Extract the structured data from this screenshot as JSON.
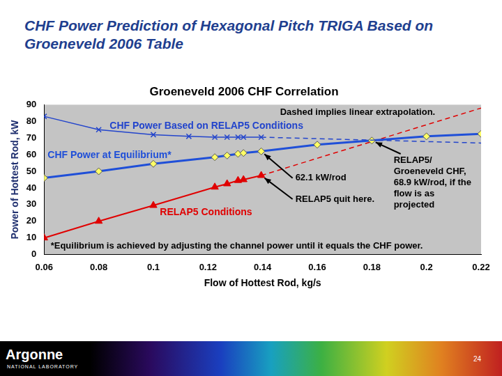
{
  "slide_title": "CHF Power Prediction of Hexagonal Pitch TRIGA Based on Groeneveld 2006 Table",
  "footer": {
    "logo": "Argonne",
    "logo_subtitle": "NATIONAL LABORATORY",
    "page": "24"
  },
  "chart_data": {
    "type": "line",
    "title": "Groeneveld 2006 CHF Correlation",
    "x_label": "Flow of Hottest Rod, kg/s",
    "y_label": "Power of Hottest Rod, kW",
    "xlim": [
      0.06,
      0.22
    ],
    "xticks": [
      0.06,
      0.08,
      0.1,
      0.12,
      0.14,
      0.16,
      0.18,
      0.2,
      0.22
    ],
    "ylim": [
      0,
      90
    ],
    "yticks": [
      0,
      10,
      20,
      30,
      40,
      50,
      60,
      70,
      80,
      90
    ],
    "grid": false,
    "series": [
      {
        "name": "CHF Power Based on RELAP5 Conditions",
        "color": "#2244cc",
        "marker": "x",
        "line_style": "solid",
        "x": [
          0.06,
          0.08,
          0.1,
          0.113,
          0.1225,
          0.127,
          0.131,
          0.133,
          0.1395
        ],
        "values": [
          83,
          75,
          72,
          71,
          70.5,
          70.5,
          70.5,
          70.5,
          70.5
        ]
      },
      {
        "color": "#2244cc",
        "marker": "none",
        "line_style": "dashed",
        "x": [
          0.1395,
          0.22
        ],
        "values": [
          70.5,
          67
        ]
      },
      {
        "name": "CHF Power at Equilibrium*",
        "color": "#1f4fd8",
        "marker": "diamond",
        "line_style": "solid",
        "x": [
          0.06,
          0.08,
          0.1,
          0.1225,
          0.127,
          0.131,
          0.133,
          0.1395,
          0.16,
          0.18,
          0.2,
          0.22
        ],
        "values": [
          46,
          50,
          54.5,
          58.5,
          59.5,
          60.5,
          61,
          62,
          66,
          68.5,
          71,
          72.5
        ]
      },
      {
        "name": "RELAP5 Conditions",
        "color": "#e00000",
        "marker": "triangle",
        "line_style": "solid",
        "x": [
          0.06,
          0.08,
          0.1,
          0.1225,
          0.127,
          0.131,
          0.133,
          0.1395
        ],
        "values": [
          10,
          20,
          29.5,
          40.5,
          42.5,
          44.5,
          45,
          47.5
        ]
      },
      {
        "color": "#e00000",
        "marker": "none",
        "line_style": "dashed",
        "x": [
          0.1395,
          0.22
        ],
        "values": [
          47.5,
          88
        ]
      }
    ],
    "annotations": [
      "Dashed implies linear extrapolation.",
      "62.1 kW/rod",
      "RELAP5 quit here.",
      "RELAP5/ Groeneveld CHF, 68.9 kW/rod, if the flow is as projected",
      "*Equilibrium is achieved by adjusting the channel power until it equals the CHF power."
    ]
  }
}
